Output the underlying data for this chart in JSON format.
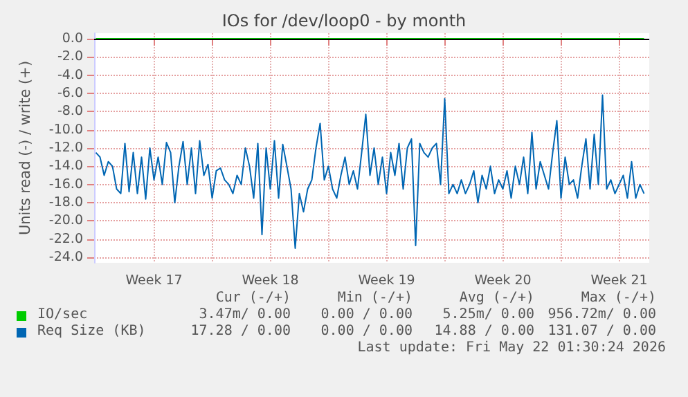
{
  "chart_data": {
    "type": "line",
    "title": "IOs for /dev/loop0 - by month",
    "ylabel": "Units read (-) / write (+)",
    "xlim": [
      "2026-04-18T21:30",
      "2026-05-22T07:30"
    ],
    "xticks": [
      {
        "value": "2026-04-22T12:00",
        "label": "Week 17"
      },
      {
        "value": "2026-04-26T00:00",
        "label": null
      },
      {
        "value": "2026-04-29T12:00",
        "label": "Week 18"
      },
      {
        "value": "2026-05-03T00:00",
        "label": null
      },
      {
        "value": "2026-05-06T12:00",
        "label": "Week 19"
      },
      {
        "value": "2026-05-10T00:00",
        "label": null
      },
      {
        "value": "2026-05-13T12:00",
        "label": "Week 20"
      },
      {
        "value": "2026-05-17T00:00",
        "label": null
      },
      {
        "value": "2026-05-20T12:00",
        "label": "Week 21"
      }
    ],
    "ylim": [
      -24.6,
      0.6
    ],
    "yticks": [
      {
        "value": 0,
        "label": "0.0"
      },
      {
        "value": -2,
        "label": "-2.0"
      },
      {
        "value": -4,
        "label": "-4.0"
      },
      {
        "value": -6,
        "label": "-6.0"
      },
      {
        "value": -8,
        "label": "-8.0"
      },
      {
        "value": -10,
        "label": "-10.0"
      },
      {
        "value": -12,
        "label": "-12.0"
      },
      {
        "value": -14,
        "label": "-14.0"
      },
      {
        "value": -16,
        "label": "-16.0"
      },
      {
        "value": -18,
        "label": "-18.0"
      },
      {
        "value": -20,
        "label": "-20.0"
      },
      {
        "value": -22,
        "label": "-22.0"
      },
      {
        "value": -24,
        "label": "-24.0"
      }
    ],
    "grid": true,
    "legend": "bottom",
    "marker": "none",
    "line_style": "solid",
    "ref_lines": [
      {
        "axis": "y",
        "value": 0,
        "color": "#000000"
      }
    ],
    "series": [
      {
        "name": "IO/sec",
        "color": "#00cc00",
        "x": [
          "2026-04-19T00:00",
          "2026-05-22T00:00"
        ],
        "values": [
          0,
          0
        ]
      },
      {
        "name": "Req Size (KB)",
        "color": "#0066b3",
        "x": [
          "2026-04-19T00:00",
          "2026-04-19T06:00",
          "2026-04-19T12:00",
          "2026-04-19T18:00",
          "2026-04-20T00:00",
          "2026-04-20T06:00",
          "2026-04-20T12:00",
          "2026-04-20T18:00",
          "2026-04-21T00:00",
          "2026-04-21T06:00",
          "2026-04-21T12:00",
          "2026-04-21T18:00",
          "2026-04-22T00:00",
          "2026-04-22T06:00",
          "2026-04-22T12:00",
          "2026-04-22T18:00",
          "2026-04-23T00:00",
          "2026-04-23T06:00",
          "2026-04-23T12:00",
          "2026-04-23T18:00",
          "2026-04-24T00:00",
          "2026-04-24T06:00",
          "2026-04-24T12:00",
          "2026-04-24T18:00",
          "2026-04-25T00:00",
          "2026-04-25T06:00",
          "2026-04-25T12:00",
          "2026-04-25T18:00",
          "2026-04-26T00:00",
          "2026-04-26T06:00",
          "2026-04-26T12:00",
          "2026-04-26T18:00",
          "2026-04-27T00:00",
          "2026-04-27T06:00",
          "2026-04-27T12:00",
          "2026-04-27T18:00",
          "2026-04-28T00:00",
          "2026-04-28T06:00",
          "2026-04-28T12:00",
          "2026-04-28T18:00",
          "2026-04-29T00:00",
          "2026-04-29T06:00",
          "2026-04-29T12:00",
          "2026-04-29T18:00",
          "2026-04-30T00:00",
          "2026-04-30T06:00",
          "2026-04-30T12:00",
          "2026-04-30T18:00",
          "2026-05-01T00:00",
          "2026-05-01T06:00",
          "2026-05-01T12:00",
          "2026-05-01T18:00",
          "2026-05-02T00:00",
          "2026-05-02T06:00",
          "2026-05-02T12:00",
          "2026-05-02T18:00",
          "2026-05-03T00:00",
          "2026-05-03T06:00",
          "2026-05-03T12:00",
          "2026-05-03T18:00",
          "2026-05-04T00:00",
          "2026-05-04T06:00",
          "2026-05-04T12:00",
          "2026-05-04T18:00",
          "2026-05-05T00:00",
          "2026-05-05T06:00",
          "2026-05-05T12:00",
          "2026-05-05T18:00",
          "2026-05-06T00:00",
          "2026-05-06T06:00",
          "2026-05-06T12:00",
          "2026-05-06T18:00",
          "2026-05-07T00:00",
          "2026-05-07T06:00",
          "2026-05-07T12:00",
          "2026-05-07T18:00",
          "2026-05-08T00:00",
          "2026-05-08T06:00",
          "2026-05-08T12:00",
          "2026-05-08T18:00",
          "2026-05-09T00:00",
          "2026-05-09T06:00",
          "2026-05-09T12:00",
          "2026-05-09T18:00",
          "2026-05-10T00:00",
          "2026-05-10T06:00",
          "2026-05-10T12:00",
          "2026-05-10T18:00",
          "2026-05-11T00:00",
          "2026-05-11T06:00",
          "2026-05-11T12:00",
          "2026-05-11T18:00",
          "2026-05-12T00:00",
          "2026-05-12T06:00",
          "2026-05-12T12:00",
          "2026-05-12T18:00",
          "2026-05-13T00:00",
          "2026-05-13T06:00",
          "2026-05-13T12:00",
          "2026-05-13T18:00",
          "2026-05-14T00:00",
          "2026-05-14T06:00",
          "2026-05-14T12:00",
          "2026-05-14T18:00",
          "2026-05-15T00:00",
          "2026-05-15T06:00",
          "2026-05-15T12:00",
          "2026-05-15T18:00",
          "2026-05-16T00:00",
          "2026-05-16T06:00",
          "2026-05-16T12:00",
          "2026-05-16T18:00",
          "2026-05-17T00:00",
          "2026-05-17T06:00",
          "2026-05-17T12:00",
          "2026-05-17T18:00",
          "2026-05-18T00:00",
          "2026-05-18T06:00",
          "2026-05-18T12:00",
          "2026-05-18T18:00",
          "2026-05-19T00:00",
          "2026-05-19T06:00",
          "2026-05-19T12:00",
          "2026-05-19T18:00",
          "2026-05-20T00:00",
          "2026-05-20T06:00",
          "2026-05-20T12:00",
          "2026-05-20T18:00",
          "2026-05-21T00:00",
          "2026-05-21T06:00",
          "2026-05-21T12:00",
          "2026-05-21T18:00",
          "2026-05-22T00:00"
        ],
        "values": [
          -12.5,
          -13.0,
          -15.0,
          -13.5,
          -14.0,
          -16.5,
          -17.0,
          -11.5,
          -16.8,
          -12.5,
          -17.0,
          -13.0,
          -17.6,
          -12.0,
          -15.5,
          -13.0,
          -16.0,
          -11.4,
          -12.5,
          -18.0,
          -14.0,
          -11.3,
          -16.0,
          -12.0,
          -17.0,
          -11.2,
          -15.0,
          -13.8,
          -17.5,
          -14.5,
          -14.2,
          -15.5,
          -16.0,
          -17.0,
          -15.0,
          -16.0,
          -12.0,
          -14.0,
          -17.5,
          -11.5,
          -21.5,
          -12.0,
          -16.5,
          -11.2,
          -17.5,
          -11.6,
          -14.0,
          -16.5,
          -23.0,
          -17.0,
          -19.0,
          -16.5,
          -15.5,
          -12.0,
          -9.3,
          -15.5,
          -14.0,
          -16.5,
          -17.5,
          -15.0,
          -13.0,
          -16.0,
          -14.5,
          -16.5,
          -12.5,
          -8.3,
          -15.0,
          -12.0,
          -16.0,
          -13.0,
          -17.0,
          -12.5,
          -15.0,
          -11.5,
          -16.5,
          -12.0,
          -11.0,
          -22.7,
          -11.5,
          -12.5,
          -13.0,
          -12.0,
          -11.5,
          -16.0,
          -6.6,
          -17.0,
          -16.0,
          -17.0,
          -15.5,
          -17.0,
          -16.0,
          -14.5,
          -18.0,
          -15.0,
          -16.5,
          -14.0,
          -17.0,
          -15.5,
          -16.5,
          -14.5,
          -17.5,
          -14.0,
          -16.0,
          -13.0,
          -17.0,
          -10.3,
          -16.5,
          -13.5,
          -15.0,
          -16.5,
          -12.5,
          -9.0,
          -17.5,
          -13.0,
          -16.0,
          -15.5,
          -17.5,
          -14.0,
          -11.0,
          -16.5,
          -10.5,
          -16.0,
          -6.2,
          -16.5,
          -15.5,
          -17.0,
          -16.0,
          -15.0,
          -17.5,
          -13.5,
          -17.5,
          -16.0,
          -17.0
        ]
      }
    ],
    "annotations": [
      "Cur (-/+)",
      "Min (-/+)",
      "Avg (-/+)",
      "Max (-/+)",
      "3.47m/ 0.00",
      "0.00 / 0.00",
      "5.25m/ 0.00",
      "956.72m/ 0.00",
      "17.28 / 0.00",
      "0.00 / 0.00",
      "14.88 / 0.00",
      "131.07 / 0.00",
      "Last update: Fri May 22 01:30:24 2026"
    ]
  }
}
